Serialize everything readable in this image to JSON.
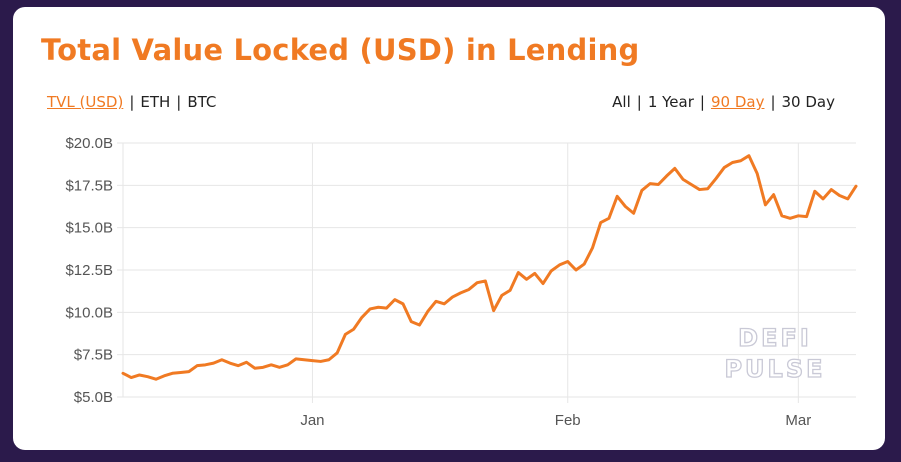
{
  "title": "Total Value Locked (USD) in Lending",
  "currency_toggle": {
    "options": [
      "TVL (USD)",
      "ETH",
      "BTC"
    ],
    "selected": "TVL (USD)"
  },
  "range_toggle": {
    "options": [
      "All",
      "1 Year",
      "90 Day",
      "30 Day"
    ],
    "selected": "90 Day"
  },
  "watermark": {
    "line1": "DEFI",
    "line2": "PULSE"
  },
  "colors": {
    "accent": "#f07a23",
    "background": "#2b1a4b",
    "grid": "#e6e6e6"
  },
  "chart_data": {
    "type": "line",
    "title": "Total Value Locked (USD) in Lending",
    "xlabel": "",
    "ylabel": "",
    "x_tick_labels": [
      "Jan",
      "Feb",
      "Mar"
    ],
    "x_tick_days": [
      23,
      54,
      82
    ],
    "y_tick_labels": [
      "$5.0B",
      "$7.5B",
      "$10.0B",
      "$12.5B",
      "$15.0B",
      "$17.5B",
      "$20.0B"
    ],
    "ylim": [
      5,
      20
    ],
    "y_unit": "billion USD",
    "grid": true,
    "series": [
      {
        "color": "#f07a23",
        "values": [
          6.4,
          6.15,
          6.3,
          6.2,
          6.05,
          6.25,
          6.4,
          6.45,
          6.5,
          6.85,
          6.9,
          7.0,
          7.2,
          7.0,
          6.85,
          7.05,
          6.7,
          6.75,
          6.9,
          6.75,
          6.9,
          7.25,
          7.2,
          7.15,
          7.1,
          7.2,
          7.6,
          8.7,
          9.0,
          9.7,
          10.2,
          10.3,
          10.25,
          10.75,
          10.5,
          9.45,
          9.25,
          10.05,
          10.65,
          10.5,
          10.9,
          11.15,
          11.35,
          11.75,
          11.85,
          10.1,
          11.0,
          11.3,
          12.35,
          11.95,
          12.3,
          11.7,
          12.45,
          12.8,
          13.0,
          12.5,
          12.85,
          13.8,
          15.3,
          15.55,
          16.85,
          16.25,
          15.85,
          17.2,
          17.6,
          17.55,
          18.05,
          18.5,
          17.85,
          17.55,
          17.25,
          17.3,
          17.9,
          18.55,
          18.85,
          18.95,
          19.25,
          18.2,
          16.35,
          16.95,
          15.7,
          15.55,
          15.7,
          15.65,
          17.15,
          16.7,
          17.25,
          16.9,
          16.7,
          17.45
        ]
      }
    ]
  }
}
